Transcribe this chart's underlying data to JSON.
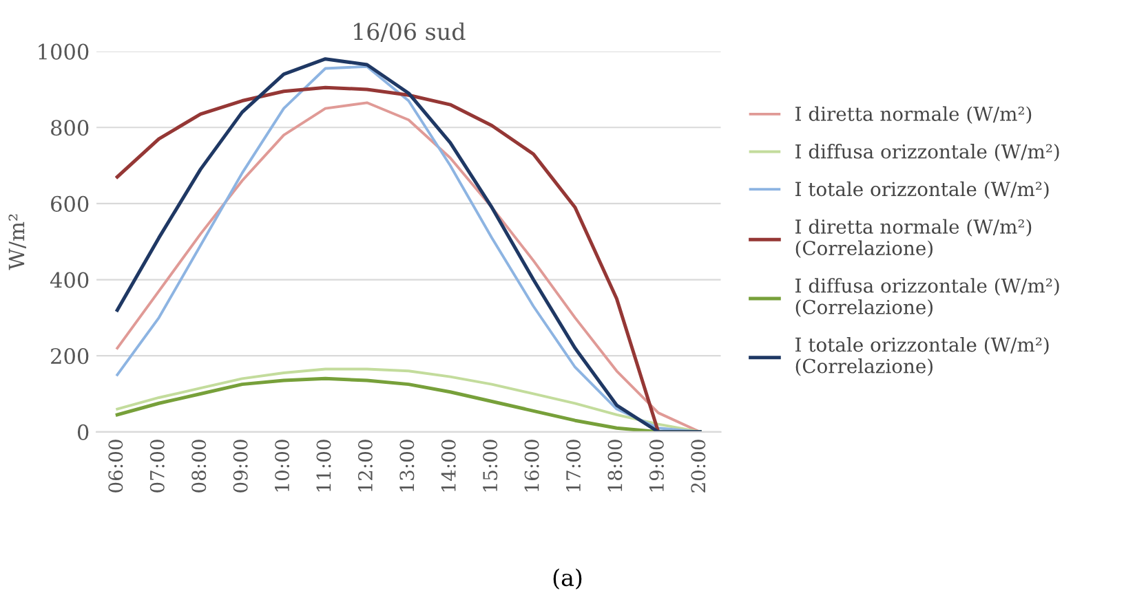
{
  "chart_data": {
    "type": "line",
    "title": "16/06 sud",
    "ylabel": "W/m²",
    "annotations": [
      "(a)"
    ],
    "categories": [
      "06:00",
      "07:00",
      "08:00",
      "09:00",
      "10:00",
      "11:00",
      "12:00",
      "13:00",
      "14:00",
      "15:00",
      "16:00",
      "17:00",
      "18:00",
      "19:00",
      "20:00"
    ],
    "series": [
      {
        "name": "I diretta normale (W/m²)",
        "color": "#e09a96",
        "values": [
          220,
          370,
          520,
          660,
          780,
          850,
          865,
          820,
          720,
          590,
          450,
          300,
          160,
          50,
          0
        ]
      },
      {
        "name": "I diffusa orizzontale (W/m²)",
        "color": "#c3dc9c",
        "values": [
          60,
          90,
          115,
          140,
          155,
          165,
          165,
          160,
          145,
          125,
          100,
          75,
          45,
          20,
          0
        ]
      },
      {
        "name": "I totale orizzontale (W/m²)",
        "color": "#8db4e2",
        "values": [
          150,
          300,
          490,
          680,
          850,
          955,
          960,
          870,
          700,
          510,
          330,
          170,
          60,
          10,
          0
        ]
      },
      {
        "name": "I diretta normale (W/m²)\n(Correlazione)",
        "color": "#953735",
        "values": [
          670,
          770,
          835,
          870,
          895,
          905,
          900,
          885,
          860,
          805,
          730,
          590,
          350,
          0,
          null
        ]
      },
      {
        "name": "I diffusa orizzontale (W/m²)\n(Correlazione)",
        "color": "#77a03a",
        "values": [
          45,
          75,
          100,
          125,
          135,
          140,
          135,
          125,
          105,
          80,
          55,
          30,
          10,
          0,
          0
        ]
      },
      {
        "name": "I totale orizzontale (W/m²)\n(Correlazione)",
        "color": "#1f3864",
        "values": [
          320,
          510,
          690,
          840,
          940,
          980,
          965,
          890,
          760,
          590,
          400,
          220,
          70,
          0,
          0
        ]
      }
    ],
    "ylim": [
      0,
      1000
    ],
    "yticks": [
      0,
      200,
      400,
      600,
      800,
      1000
    ],
    "grid": "y",
    "legend": "right",
    "marker": "none",
    "line_style": "solid"
  }
}
